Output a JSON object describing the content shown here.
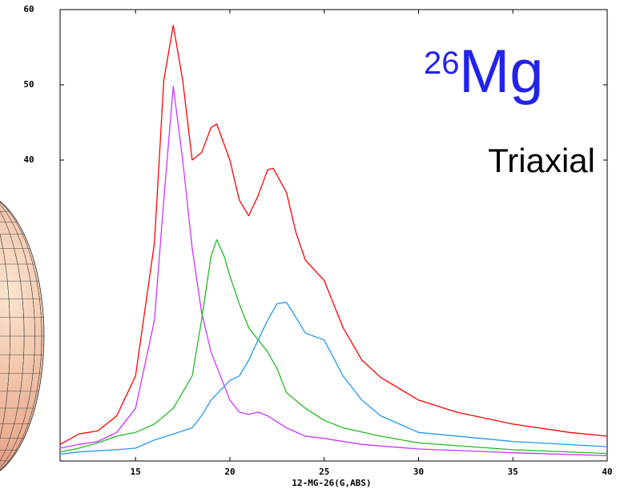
{
  "chart_data": {
    "type": "line",
    "annotations": [
      "26",
      "Mg",
      "Triaxial"
    ],
    "xlabel": "12-MG-26(G,ABS)",
    "xlim": [
      11,
      40
    ],
    "xticks": [
      15,
      20,
      25,
      30,
      35,
      40
    ],
    "ylim": [
      0,
      60
    ],
    "yticks": [
      40,
      50,
      60
    ],
    "series": [
      {
        "color": "#ff0000",
        "x": [
          11,
          12,
          13,
          14,
          15,
          16,
          16.5,
          17,
          17.5,
          18,
          18.5,
          19,
          19.3,
          20,
          20.5,
          21,
          21.5,
          22,
          22.3,
          23,
          23.5,
          24,
          25,
          26,
          27,
          28,
          30,
          32,
          35,
          38,
          40
        ],
        "values": [
          2.2,
          3.6,
          4.0,
          6,
          11.3,
          29,
          50.6,
          57.9,
          50.6,
          40,
          41,
          44.3,
          44.8,
          40,
          34.7,
          32.6,
          35.3,
          38.7,
          38.9,
          35.7,
          30.4,
          26.7,
          24,
          17.7,
          13.4,
          11.1,
          8.1,
          6.5,
          4.9,
          3.8,
          3.3
        ]
      },
      {
        "color": "#cc33ff",
        "x": [
          11,
          12,
          13,
          14,
          15,
          16,
          16.5,
          17,
          17.5,
          18,
          18.5,
          19,
          20,
          20.5,
          21,
          21.5,
          22,
          23,
          24,
          25,
          27,
          30,
          35,
          40
        ],
        "values": [
          1.7,
          2.2,
          2.6,
          3.8,
          7,
          18.7,
          34.7,
          49.8,
          40,
          28.3,
          19.8,
          14.5,
          8.1,
          6.5,
          6.2,
          6.5,
          6,
          4.4,
          3.3,
          3,
          2.2,
          1.6,
          1.1,
          0.7
        ]
      },
      {
        "color": "#22bb22",
        "x": [
          11,
          12,
          13,
          14,
          15,
          16,
          17,
          18,
          18.5,
          19,
          19.3,
          19.7,
          20,
          20.5,
          21,
          21.5,
          22,
          22.5,
          23,
          24,
          25,
          26,
          28,
          30,
          35,
          40
        ],
        "values": [
          1.2,
          1.7,
          2.4,
          3.3,
          3.8,
          4.9,
          7,
          11.3,
          18.7,
          27.2,
          29.4,
          27.2,
          24.6,
          20.9,
          17.7,
          16.1,
          14.5,
          12.3,
          9.1,
          7,
          5.4,
          4.4,
          3.3,
          2.4,
          1.5,
          1
        ]
      },
      {
        "color": "#2299ee",
        "x": [
          11,
          12,
          14,
          15,
          16,
          17,
          18,
          18.5,
          19,
          20,
          20.5,
          21,
          21.5,
          22,
          22.5,
          23,
          23.5,
          24,
          25,
          26,
          27,
          28,
          30,
          35,
          40
        ],
        "values": [
          0.9,
          1.2,
          1.5,
          1.7,
          2.8,
          3.6,
          4.4,
          6,
          8.1,
          10.7,
          11.3,
          13.4,
          16.1,
          18.7,
          20.9,
          21.1,
          19.1,
          17,
          16.1,
          11.3,
          8.1,
          6,
          3.8,
          2.6,
          1.9
        ]
      }
    ]
  }
}
